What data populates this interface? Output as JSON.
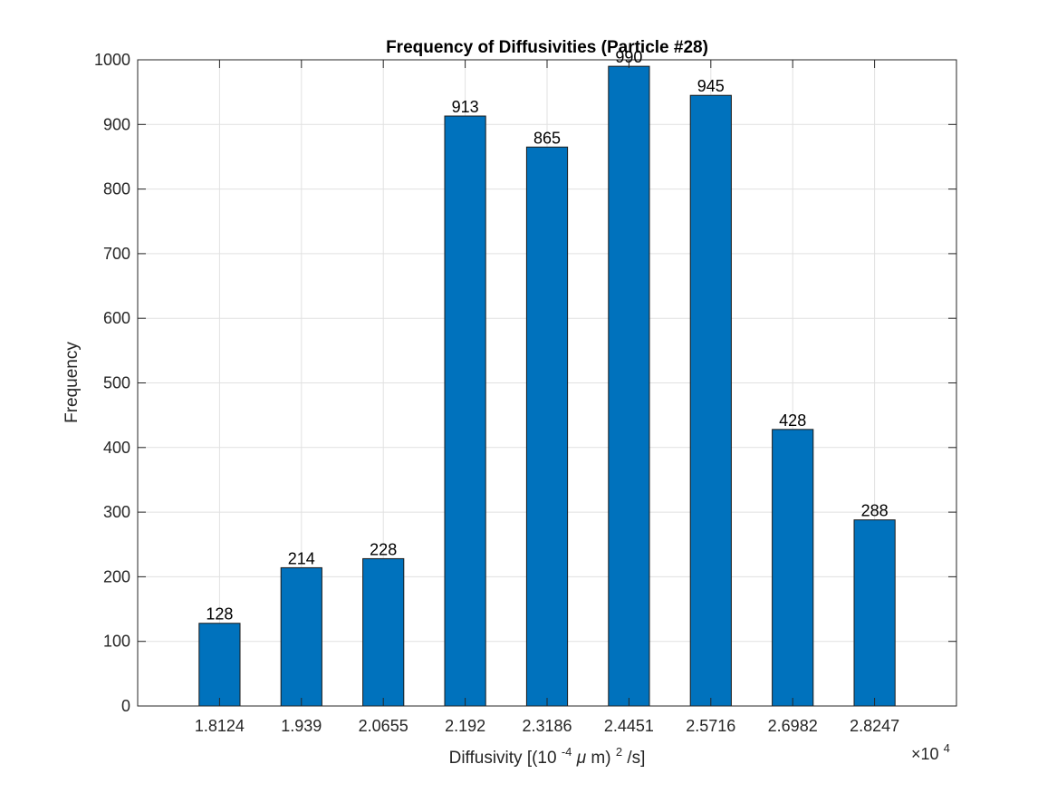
{
  "chart_data": {
    "type": "bar",
    "title": "Frequency of Diffusivities (Particle #28)",
    "xlabel": {
      "text": "Diffusivity [(10",
      "sup1": "-4",
      "mu": "μ",
      "mid": "m)",
      "sup2": "2",
      "tail": "/s]"
    },
    "ylabel": "Frequency",
    "x_exponent": {
      "times": "×10",
      "power": "4"
    },
    "categories": [
      "1.8124",
      "1.939",
      "2.0655",
      "2.192",
      "2.3186",
      "2.4451",
      "2.5716",
      "2.6982",
      "2.8247"
    ],
    "values": [
      128,
      214,
      228,
      913,
      865,
      990,
      945,
      428,
      288
    ],
    "ylim": [
      0,
      1000
    ],
    "yticks": [
      0,
      100,
      200,
      300,
      400,
      500,
      600,
      700,
      800,
      900,
      1000
    ],
    "bar_color": "#0072BD",
    "grid": true,
    "data_labels": true
  }
}
